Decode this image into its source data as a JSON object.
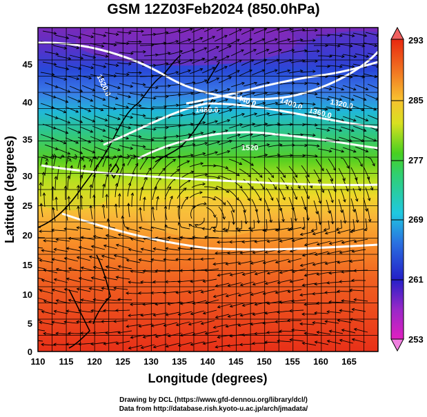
{
  "title": "GSM 12Z03Feb2024 (850.0hPa)",
  "x_axis": {
    "label": "Longitude (degrees)",
    "ticks": [
      "110",
      "115",
      "120",
      "125",
      "130",
      "135",
      "140",
      "145",
      "150",
      "155",
      "160",
      "165"
    ],
    "range": [
      110,
      170
    ]
  },
  "y_axis": {
    "label": "Latitude  (degrees)",
    "ticks": [
      "0",
      "5",
      "10",
      "15",
      "20",
      "25",
      "30",
      "35",
      "40",
      "45"
    ],
    "range": [
      0,
      50
    ]
  },
  "colorbar": {
    "labels": [
      "253",
      "261",
      "269",
      "277",
      "285",
      "293"
    ],
    "min": 253,
    "max": 293,
    "colors": [
      "#e020c0",
      "#8a2ad0",
      "#1a20c8",
      "#2a6ae0",
      "#20c0e0",
      "#30d070",
      "#40d020",
      "#a0e020",
      "#f0e020",
      "#f0a020",
      "#f05020",
      "#e82810"
    ]
  },
  "contours": {
    "color": "#ffffff",
    "labels": [
      "1520.0",
      "1480.0",
      "1440.0",
      "1400.0",
      "1360.0",
      "1320.0",
      "1520"
    ]
  },
  "streamlines": {
    "color": "#000000"
  },
  "credits": {
    "line1": "Drawing by DCL (https://www.gfd-dennou.org/library/dcl/)",
    "line2": "Data from http://database.rish.kyoto-u.ac.jp/arch/jmadata/"
  }
}
